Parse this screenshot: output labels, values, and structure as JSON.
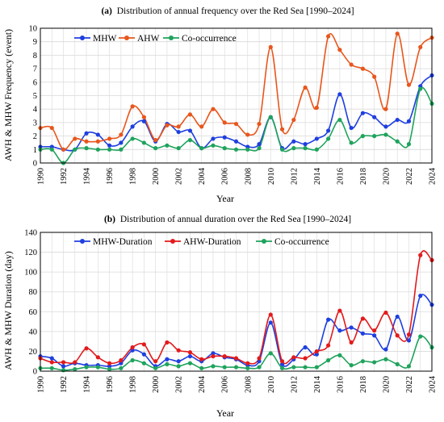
{
  "colors": {
    "mhw": "#1f3fdf",
    "ahw": "#e8561c",
    "cooc": "#1fa35c",
    "ahw_b": "#e31a1c",
    "grid": "#d9d9d9",
    "frame": "#000000"
  },
  "chart_data": [
    {
      "type": "line",
      "panel_letter": "(a)",
      "title": "Distribution of annual frequency over the Red Sea [1990–2024]",
      "xlabel": "Year",
      "ylabel": "AWH & MHW Frequency (event)",
      "xlim": [
        1990,
        2024
      ],
      "ylim": [
        0,
        10
      ],
      "yticks": [
        0,
        1,
        2,
        3,
        4,
        5,
        6,
        7,
        8,
        9,
        10
      ],
      "xticks": [
        1990,
        1992,
        1994,
        1996,
        1998,
        2000,
        2002,
        2004,
        2006,
        2008,
        2010,
        2012,
        2014,
        2016,
        2018,
        2020,
        2022,
        2024
      ],
      "grid": true,
      "legend_position": "top-left",
      "x": [
        1990,
        1991,
        1992,
        1993,
        1994,
        1995,
        1996,
        1997,
        1998,
        1999,
        2000,
        2001,
        2002,
        2003,
        2004,
        2005,
        2006,
        2007,
        2008,
        2009,
        2010,
        2011,
        2012,
        2013,
        2014,
        2015,
        2016,
        2017,
        2018,
        2019,
        2020,
        2021,
        2022,
        2023,
        2024
      ],
      "series": [
        {
          "name": "MHW",
          "color_key": "mhw",
          "values": [
            1.2,
            1.2,
            1.0,
            1.0,
            2.2,
            2.1,
            1.3,
            1.5,
            2.7,
            3.1,
            1.6,
            2.9,
            2.3,
            2.4,
            1.1,
            1.8,
            1.9,
            1.6,
            1.2,
            1.4,
            3.4,
            1.1,
            1.6,
            1.4,
            1.8,
            2.4,
            5.1,
            2.6,
            3.7,
            3.4,
            2.7,
            3.2,
            3.1,
            5.7,
            6.5
          ]
        },
        {
          "name": "AHW",
          "color_key": "ahw",
          "values": [
            2.6,
            2.6,
            1.0,
            1.8,
            1.6,
            1.6,
            1.8,
            2.1,
            4.2,
            3.4,
            1.7,
            2.8,
            2.7,
            3.6,
            2.7,
            4.0,
            3.0,
            2.9,
            2.1,
            2.9,
            8.6,
            2.5,
            3.2,
            5.6,
            4.1,
            9.4,
            8.4,
            7.3,
            7.0,
            6.4,
            4.0,
            9.6,
            5.8,
            8.6,
            9.3
          ]
        },
        {
          "name": "Co-occurrence",
          "color_key": "cooc",
          "values": [
            1.0,
            1.0,
            0.0,
            1.0,
            1.1,
            1.0,
            1.0,
            1.0,
            1.8,
            1.5,
            1.1,
            1.3,
            1.1,
            1.7,
            1.1,
            1.3,
            1.1,
            1.0,
            1.0,
            1.1,
            3.4,
            1.0,
            1.1,
            1.1,
            1.0,
            1.8,
            3.2,
            1.5,
            2.0,
            2.0,
            2.1,
            1.6,
            1.4,
            5.5,
            4.4
          ]
        }
      ]
    },
    {
      "type": "line",
      "panel_letter": "(b)",
      "title": "Distribution of annual duration over the Red Sea [1990–2024]",
      "xlabel": "Year",
      "ylabel": "AWH & MHW Duration (day)",
      "xlim": [
        1990,
        2024
      ],
      "ylim": [
        0,
        140
      ],
      "yticks": [
        0,
        20,
        40,
        60,
        80,
        100,
        120,
        140
      ],
      "xticks": [
        1990,
        1992,
        1994,
        1996,
        1998,
        2000,
        2002,
        2004,
        2006,
        2008,
        2010,
        2012,
        2014,
        2016,
        2018,
        2020,
        2022,
        2024
      ],
      "grid": true,
      "legend_position": "top-left",
      "x": [
        1990,
        1991,
        1992,
        1993,
        1994,
        1995,
        1996,
        1997,
        1998,
        1999,
        2000,
        2001,
        2002,
        2003,
        2004,
        2005,
        2006,
        2007,
        2008,
        2009,
        2010,
        2011,
        2012,
        2013,
        2014,
        2015,
        2016,
        2017,
        2018,
        2019,
        2020,
        2021,
        2022,
        2023,
        2024
      ],
      "series": [
        {
          "name": "MHW-Duration",
          "color_key": "mhw",
          "values": [
            15,
            13,
            5,
            8,
            6,
            6,
            5,
            8,
            21,
            17,
            5,
            12,
            10,
            15,
            10,
            18,
            14,
            12,
            6,
            10,
            49,
            7,
            12,
            24,
            17,
            52,
            41,
            44,
            38,
            36,
            22,
            55,
            31,
            76,
            67
          ]
        },
        {
          "name": "AHW-Duration",
          "color_key": "ahw_b",
          "values": [
            13,
            9,
            9,
            9,
            23,
            14,
            8,
            11,
            24,
            27,
            10,
            29,
            21,
            19,
            12,
            15,
            15,
            13,
            8,
            13,
            57,
            10,
            14,
            13,
            20,
            26,
            61,
            29,
            53,
            41,
            59,
            36,
            37,
            117,
            112
          ]
        },
        {
          "name": "Co-occurrence",
          "color_key": "cooc",
          "values": [
            3,
            3,
            1,
            2,
            4,
            4,
            2,
            3,
            11,
            8,
            3,
            7,
            5,
            8,
            3,
            5,
            4,
            4,
            3,
            4,
            18,
            3,
            4,
            4,
            4,
            11,
            16,
            6,
            10,
            9,
            12,
            7,
            5,
            35,
            24
          ]
        }
      ]
    }
  ]
}
